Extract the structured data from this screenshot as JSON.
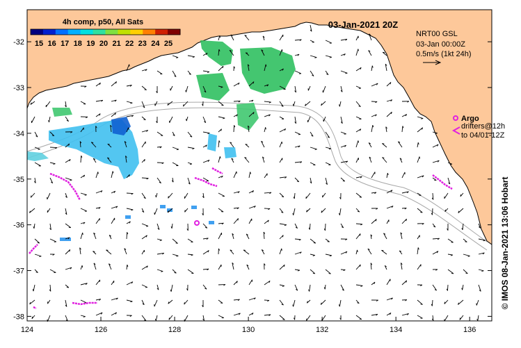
{
  "title": "03-Jan-2021 20Z",
  "colorbar": {
    "title": "4h comp, p50, All Sats",
    "ticks": [
      "15",
      "16",
      "17",
      "18",
      "19",
      "20",
      "21",
      "22",
      "23",
      "24",
      "25"
    ],
    "colors": [
      "#000080",
      "#0020d0",
      "#0070ff",
      "#00b0ff",
      "#00e0e0",
      "#30e0a0",
      "#80e040",
      "#c0e000",
      "#ffd000",
      "#ff8000",
      "#d02000",
      "#800000"
    ]
  },
  "current_info": {
    "model": "NRT00 GSL",
    "time": "03-Jan 00:00Z",
    "scale": "0.5m/s (1kt 24h)"
  },
  "argo_legend": {
    "argo": "Argo",
    "drifters_line1": "drifters@12h",
    "drifters_line2": "to 04/01-12Z"
  },
  "credit": "© IMOS 08-Jan-2021 13:06 Hobart",
  "axes": {
    "x_ticks": [
      "124",
      "126",
      "128",
      "130",
      "132",
      "134",
      "136"
    ],
    "y_ticks": [
      "-32",
      "-33",
      "-34",
      "-35",
      "-36",
      "-37",
      "-38"
    ],
    "xlim": [
      124,
      136.6
    ],
    "ylim": [
      -38.1,
      -31.3
    ]
  },
  "colors": {
    "land": "#fdc89a",
    "ocean": "#ffffff",
    "argo": "#e020e0",
    "bathy": "#a8a8a8"
  }
}
